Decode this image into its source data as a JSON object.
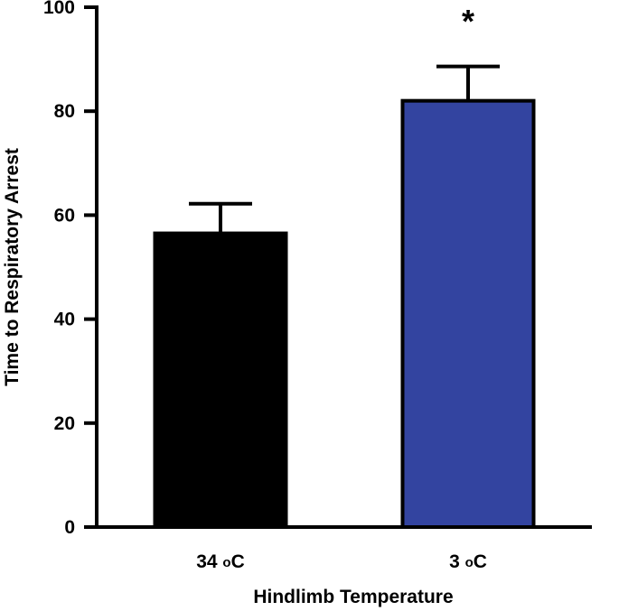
{
  "chart_data": {
    "type": "bar",
    "title": "",
    "xlabel": "Hindlimb Temperature",
    "ylabel": "Time to Respiratory Arrest",
    "ylim": [
      0,
      100
    ],
    "yticks": [
      0,
      20,
      40,
      60,
      80,
      100
    ],
    "grid": false,
    "categories": [
      {
        "value": "34",
        "unit": "oC"
      },
      {
        "value": "3",
        "unit": "oC"
      }
    ],
    "values": [
      56.5,
      82
    ],
    "error_upper": [
      62.2,
      88.6
    ],
    "bar_colors": [
      "#000000",
      "#3344a0"
    ],
    "annotations": [
      "",
      "*"
    ]
  }
}
